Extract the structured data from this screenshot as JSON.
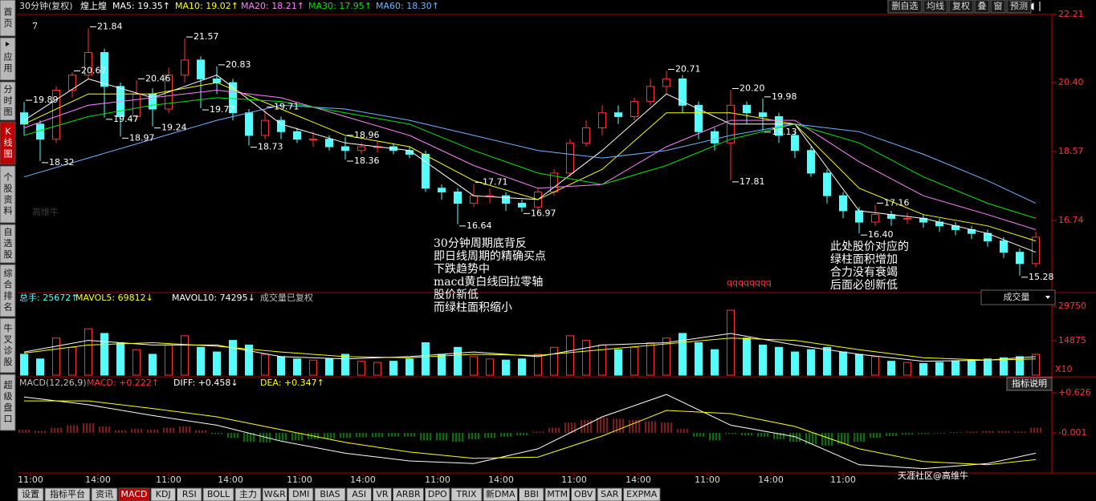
{
  "header": {
    "period": "30分钟(复权)",
    "stock": "煌上煌",
    "ma": [
      {
        "text": "MA5: 19.35↑",
        "color": "#ffffff"
      },
      {
        "text": "MA10: 19.02↑",
        "color": "#ffff00"
      },
      {
        "text": "MA20: 18.21↑",
        "color": "#ff80ff"
      },
      {
        "text": "MA30: 17.95↑",
        "color": "#00e600"
      },
      {
        "text": "MA60: 18.30↑",
        "color": "#6fb4ff"
      }
    ],
    "buttons": [
      "删自选",
      "均线",
      "复权",
      "叠",
      "窗",
      "预测"
    ],
    "counter": "7"
  },
  "sidebar": [
    "首页",
    "应用",
    "分时图",
    "K线图",
    "个股资料",
    "自选股",
    "综合排名",
    "牛叉诊股",
    "超级盘口"
  ],
  "price_chart": {
    "type": "candlestick",
    "up_color": "#ff3232",
    "down_color": "#54fcfc",
    "ylim": [
      14.83,
      22.21
    ],
    "yticks": [
      22.21,
      {
        "value": 20.4,
        "label": "20.40"
      },
      18.57,
      16.74
    ],
    "candles": [
      [
        19.6,
        19.3,
        19.89,
        19.0
      ],
      [
        19.3,
        18.9,
        19.4,
        18.32
      ],
      [
        18.9,
        20.2,
        20.3,
        18.8
      ],
      [
        20.2,
        20.6,
        20.67,
        20.0
      ],
      [
        20.6,
        21.2,
        21.84,
        20.5
      ],
      [
        21.2,
        20.3,
        21.3,
        19.47
      ],
      [
        20.3,
        19.5,
        20.4,
        18.97
      ],
      [
        19.5,
        20.1,
        20.46,
        19.4
      ],
      [
        20.1,
        19.7,
        20.25,
        19.24
      ],
      [
        19.7,
        20.6,
        20.8,
        19.6
      ],
      [
        20.6,
        21.0,
        21.57,
        20.4
      ],
      [
        21.0,
        20.5,
        21.1,
        19.72
      ],
      [
        20.5,
        20.4,
        20.83,
        20.1
      ],
      [
        20.4,
        19.6,
        20.5,
        19.4
      ],
      [
        19.6,
        19.0,
        19.7,
        18.73
      ],
      [
        19.0,
        19.4,
        19.71,
        18.9
      ],
      [
        19.4,
        19.1,
        19.5,
        18.9
      ],
      [
        19.1,
        18.9,
        19.2,
        18.8
      ],
      [
        18.9,
        18.9,
        19.1,
        18.7
      ],
      [
        18.9,
        18.7,
        19.0,
        18.6
      ],
      [
        18.7,
        18.6,
        18.96,
        18.36
      ],
      [
        18.6,
        18.7,
        18.8,
        18.5
      ],
      [
        18.7,
        18.7,
        18.85,
        18.55
      ],
      [
        18.7,
        18.6,
        18.8,
        18.5
      ],
      [
        18.6,
        18.5,
        18.7,
        18.4
      ],
      [
        18.5,
        17.6,
        18.6,
        17.5
      ],
      [
        17.6,
        17.5,
        17.7,
        17.3
      ],
      [
        17.5,
        17.2,
        17.6,
        16.64
      ],
      [
        17.2,
        17.4,
        17.71,
        17.1
      ],
      [
        17.4,
        17.4,
        17.6,
        17.2
      ],
      [
        17.4,
        17.2,
        17.5,
        17.0
      ],
      [
        17.2,
        17.1,
        17.3,
        16.97
      ],
      [
        17.1,
        17.5,
        17.6,
        17.0
      ],
      [
        17.5,
        18.0,
        18.1,
        17.4
      ],
      [
        18.0,
        18.8,
        18.9,
        17.9
      ],
      [
        18.8,
        19.2,
        19.4,
        18.7
      ],
      [
        19.2,
        19.6,
        19.8,
        19.0
      ],
      [
        19.6,
        19.5,
        19.8,
        19.3
      ],
      [
        19.5,
        19.9,
        20.0,
        19.4
      ],
      [
        19.9,
        20.3,
        20.5,
        19.8
      ],
      [
        20.3,
        20.5,
        20.71,
        20.1
      ],
      [
        20.5,
        19.8,
        20.6,
        19.6
      ],
      [
        19.8,
        19.1,
        19.9,
        18.9
      ],
      [
        19.1,
        18.8,
        19.2,
        18.6
      ],
      [
        18.8,
        19.8,
        20.2,
        17.81
      ],
      [
        19.8,
        19.6,
        19.9,
        19.3
      ],
      [
        19.6,
        19.5,
        19.98,
        19.13
      ],
      [
        19.5,
        19.0,
        19.6,
        18.8
      ],
      [
        19.0,
        18.6,
        19.1,
        18.4
      ],
      [
        18.6,
        18.0,
        18.7,
        17.9
      ],
      [
        18.0,
        17.4,
        18.1,
        17.2
      ],
      [
        17.4,
        17.0,
        17.5,
        16.8
      ],
      [
        17.0,
        16.7,
        17.1,
        16.4
      ],
      [
        16.7,
        16.9,
        17.16,
        16.6
      ],
      [
        16.9,
        16.8,
        17.0,
        16.6
      ],
      [
        16.8,
        16.8,
        16.95,
        16.65
      ],
      [
        16.8,
        16.7,
        16.9,
        16.55
      ],
      [
        16.7,
        16.6,
        16.8,
        16.45
      ],
      [
        16.6,
        16.5,
        16.7,
        16.35
      ],
      [
        16.5,
        16.4,
        16.6,
        16.25
      ],
      [
        16.4,
        16.2,
        16.5,
        16.05
      ],
      [
        16.2,
        15.9,
        16.3,
        15.75
      ],
      [
        15.9,
        15.6,
        16.0,
        15.28
      ],
      [
        15.6,
        16.3,
        16.45,
        15.5
      ]
    ],
    "extreme_labels": [
      {
        "value": 19.89,
        "label": "19.89"
      },
      {
        "value": 18.32,
        "label": "18.32"
      },
      {
        "value": 20.67,
        "label": "20.67"
      },
      {
        "value": 21.84,
        "label": "21.84"
      },
      {
        "value": 19.47,
        "label": "19.47"
      },
      {
        "value": 18.97,
        "label": "18.97"
      },
      {
        "value": 20.46,
        "label": "20.46"
      },
      {
        "value": 19.24,
        "label": "19.24"
      },
      {
        "value": 21.57,
        "label": "21.57"
      },
      {
        "value": 19.72,
        "label": "19.72"
      },
      {
        "value": 20.83,
        "label": "20.83"
      },
      {
        "value": 18.73,
        "label": "18.73"
      },
      {
        "value": 19.71,
        "label": "19.71"
      },
      {
        "value": 18.96,
        "label": "18.96"
      },
      {
        "value": 18.36,
        "label": "18.36"
      },
      {
        "value": 16.64,
        "label": "16.64"
      },
      {
        "value": 17.71,
        "label": "17.71"
      },
      {
        "value": 16.97,
        "label": "16.97"
      },
      {
        "value": 20.71,
        "label": "20.71"
      },
      {
        "value": 20.2,
        "label": "20.20"
      },
      {
        "value": 17.81,
        "label": "17.81"
      },
      {
        "value": 19.98,
        "label": "19.98"
      },
      {
        "value": 19.13,
        "label": "19.13"
      },
      {
        "value": 16.4,
        "label": "16.40"
      },
      {
        "value": 17.16,
        "label": "17.16"
      },
      {
        "value": 15.28,
        "label": "15.28"
      }
    ],
    "ma_x": [
      0,
      4,
      8,
      12,
      16,
      20,
      24,
      28,
      32,
      36,
      40,
      44,
      48,
      52,
      56,
      60,
      63
    ],
    "ma_series": [
      {
        "color": "#ffffff",
        "values": [
          19.4,
          20.5,
          20.0,
          20.6,
          19.3,
          18.8,
          18.6,
          17.4,
          17.3,
          18.6,
          20.1,
          19.3,
          19.3,
          17.0,
          16.8,
          16.4,
          15.9
        ]
      },
      {
        "color": "#ffff00",
        "values": [
          19.3,
          20.1,
          20.1,
          20.4,
          19.7,
          19.0,
          18.7,
          17.8,
          17.3,
          18.1,
          19.6,
          19.6,
          19.3,
          17.6,
          16.9,
          16.6,
          16.2
        ]
      },
      {
        "color": "#ff80ff",
        "values": [
          19.2,
          19.8,
          20.0,
          20.2,
          20.0,
          19.5,
          19.0,
          18.2,
          17.6,
          17.7,
          18.7,
          19.4,
          19.4,
          18.3,
          17.4,
          16.9,
          16.5
        ]
      },
      {
        "color": "#00e600",
        "values": [
          19.0,
          19.5,
          19.8,
          20.0,
          19.9,
          19.6,
          19.3,
          18.6,
          18.0,
          17.7,
          18.2,
          18.9,
          19.3,
          18.8,
          17.9,
          17.2,
          16.8
        ]
      },
      {
        "color": "#6fb4ff",
        "values": [
          17.9,
          18.4,
          18.9,
          19.4,
          19.8,
          19.7,
          19.4,
          19.0,
          18.6,
          18.4,
          18.6,
          19.0,
          19.3,
          19.1,
          18.5,
          17.8,
          17.2
        ]
      }
    ]
  },
  "annotations": {
    "left": [
      "30分钟周期底背反",
      "即日线周期的精确买点",
      "下跌趋势中",
      "macd黄白线回拉零轴",
      "股价新低",
      "而绿柱面积缩小"
    ],
    "right": [
      "此处股价对应的",
      "绿柱面积增加",
      "合力没有衰竭",
      "后面必创新低"
    ],
    "marker": "qqqqqqqq"
  },
  "volume_chart": {
    "type": "bar",
    "header": [
      {
        "text": "总手: 25672↑",
        "color": "#54fcfc"
      },
      {
        "text": "MAVOL5: 69812↓",
        "color": "#ffff00"
      },
      {
        "text": "MAVOL10: 74295↓",
        "color": "#ffffff"
      },
      {
        "text": "成交量已复权",
        "color": "#c0c0c0"
      }
    ],
    "selector": "成交量",
    "ylim": [
      0,
      31130
    ],
    "yticks": [
      29750,
      14875
    ],
    "unit": "X10",
    "values": [
      9000,
      7000,
      16000,
      12000,
      20000,
      18000,
      14000,
      11000,
      9000,
      13000,
      17000,
      12000,
      10000,
      15000,
      13000,
      9000,
      8000,
      7000,
      6500,
      7000,
      9000,
      6000,
      5500,
      6000,
      7000,
      14000,
      9000,
      12000,
      8000,
      7000,
      6500,
      7000,
      9000,
      12000,
      17000,
      15000,
      13000,
      11000,
      12000,
      14000,
      16000,
      18000,
      14000,
      11000,
      28000,
      16000,
      13000,
      12000,
      10000,
      11000,
      12000,
      10000,
      9000,
      8000,
      6000,
      5500,
      5000,
      5500,
      6000,
      6500,
      7000,
      7500,
      8000,
      9000
    ],
    "ma_series": [
      {
        "color": "#ffffff",
        "values": [
          10000,
          15000,
          13000,
          13000,
          8000,
          7000,
          8000,
          10000,
          8000,
          13000,
          14000,
          18000,
          13000,
          9000,
          6000,
          6500,
          8000
        ]
      },
      {
        "color": "#ffff00",
        "values": [
          9500,
          13000,
          14000,
          12500,
          10000,
          8000,
          7500,
          9000,
          8500,
          11000,
          13500,
          16000,
          15000,
          11000,
          7500,
          6500,
          7000
        ]
      }
    ]
  },
  "macd_chart": {
    "type": "macd",
    "header": [
      {
        "text": "MACD(12,26,9)",
        "color": "#c0c0c0"
      },
      {
        "text": "MACD: +0.222↑",
        "color": "#ff3232"
      },
      {
        "text": "DIFF: +0.458↓",
        "color": "#ffffff"
      },
      {
        "text": "DEA: +0.347↑",
        "color": "#ffff00"
      }
    ],
    "button": "指标说明",
    "ylim": [
      -0.628,
      0.777
    ],
    "yticks": [
      {
        "value": 0.626,
        "label": "+0.626"
      },
      {
        "value": -0.001,
        "label": "-0.001"
      }
    ],
    "up_color": "#ff3232",
    "down_color": "#00e600",
    "values": [
      0.05,
      0.03,
      0.08,
      0.12,
      0.15,
      0.1,
      0.04,
      0.06,
      0.05,
      0.08,
      0.1,
      0.04,
      -0.02,
      -0.08,
      -0.14,
      -0.15,
      -0.12,
      -0.12,
      -0.1,
      -0.09,
      -0.08,
      -0.07,
      -0.07,
      -0.06,
      -0.06,
      -0.12,
      -0.12,
      -0.14,
      -0.1,
      -0.08,
      -0.06,
      -0.04,
      0.02,
      0.08,
      0.16,
      0.2,
      0.24,
      0.22,
      0.2,
      0.18,
      0.16,
      0.06,
      -0.06,
      -0.12,
      -0.02,
      -0.04,
      -0.06,
      -0.1,
      -0.14,
      -0.18,
      -0.2,
      -0.18,
      -0.14,
      -0.08,
      -0.05,
      -0.03,
      -0.02,
      -0.01,
      0.01,
      0.02,
      0.03,
      0.03,
      0.02,
      0.08
    ],
    "lines": [
      {
        "color": "#ffffff",
        "values": [
          0.56,
          0.44,
          0.27,
          0.12,
          -0.13,
          -0.32,
          -0.44,
          -0.48,
          -0.25,
          0.25,
          0.6,
          0.12,
          -0.06,
          -0.5,
          -0.56,
          -0.48,
          -0.32
        ]
      },
      {
        "color": "#ffff00",
        "values": [
          0.5,
          0.5,
          0.38,
          0.25,
          0.05,
          -0.15,
          -0.3,
          -0.4,
          -0.38,
          -0.05,
          0.35,
          0.3,
          0.1,
          -0.25,
          -0.45,
          -0.5,
          -0.42
        ]
      }
    ]
  },
  "time_labels": [
    "11:00",
    "14:00",
    "11:00",
    "14:00",
    "11:00",
    "14:00",
    "11:00",
    "14:00",
    "11:00",
    "14:00",
    "11:00",
    "14:00",
    "11:00"
  ],
  "tabs": [
    "设置",
    "指标平台",
    "资讯",
    "MACD",
    "KDJ",
    "RSI",
    "BOLL",
    "主力",
    "W&R",
    "DMI",
    "BIAS",
    "ASI",
    "VR",
    "ARBR",
    "DPO",
    "TRIX",
    "新DMA",
    "BBI",
    "MTM",
    "OBV",
    "SAR",
    "EXPMA"
  ],
  "watermark": "高维牛",
  "credit": "天涯社区@高维牛"
}
